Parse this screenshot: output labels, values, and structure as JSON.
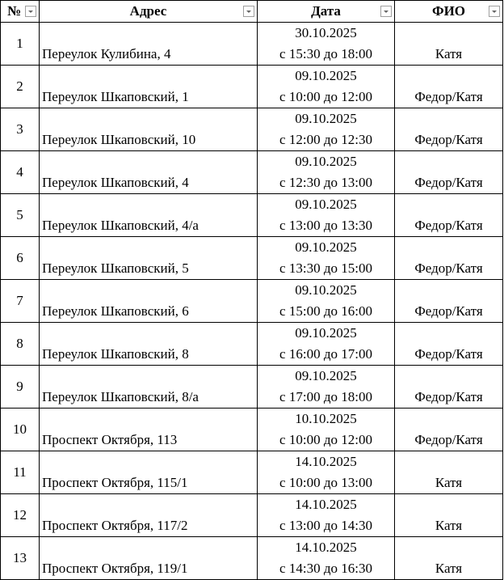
{
  "headers": [
    "№",
    "Адрес",
    "Дата",
    "ФИО"
  ],
  "rows": [
    {
      "n": "1",
      "address": "Переулок Кулибина, 4",
      "date": "30.10.2025",
      "time": "с 15:30 до 18:00",
      "fio": "Катя"
    },
    {
      "n": "2",
      "address": "Переулок Шкаповский, 1",
      "date": "09.10.2025",
      "time": "с 10:00 до 12:00",
      "fio": "Федор/Катя"
    },
    {
      "n": "3",
      "address": "Переулок Шкаповский, 10",
      "date": "09.10.2025",
      "time": "с 12:00 до 12:30",
      "fio": "Федор/Катя"
    },
    {
      "n": "4",
      "address": "Переулок Шкаповский, 4",
      "date": "09.10.2025",
      "time": "с 12:30 до 13:00",
      "fio": "Федор/Катя"
    },
    {
      "n": "5",
      "address": "Переулок Шкаповский, 4/а",
      "date": "09.10.2025",
      "time": "с 13:00 до 13:30",
      "fio": "Федор/Катя"
    },
    {
      "n": "6",
      "address": "Переулок Шкаповский, 5",
      "date": "09.10.2025",
      "time": "с 13:30 до 15:00",
      "fio": "Федор/Катя"
    },
    {
      "n": "7",
      "address": "Переулок Шкаповский, 6",
      "date": "09.10.2025",
      "time": "с 15:00 до 16:00",
      "fio": "Федор/Катя"
    },
    {
      "n": "8",
      "address": "Переулок Шкаповский, 8",
      "date": "09.10.2025",
      "time": "с 16:00 до 17:00",
      "fio": "Федор/Катя"
    },
    {
      "n": "9",
      "address": "Переулок Шкаповский, 8/а",
      "date": "09.10.2025",
      "time": "с 17:00 до 18:00",
      "fio": "Федор/Катя"
    },
    {
      "n": "10",
      "address": "Проспект Октября, 113",
      "date": "10.10.2025",
      "time": "с 10:00 до 12:00",
      "fio": "Федор/Катя"
    },
    {
      "n": "11",
      "address": "Проспект Октября, 115/1",
      "date": "14.10.2025",
      "time": "с 10:00 до 13:00",
      "fio": "Катя"
    },
    {
      "n": "12",
      "address": "Проспект Октября, 117/2",
      "date": "14.10.2025",
      "time": "с 13:00 до 14:30",
      "fio": "Катя"
    },
    {
      "n": "13",
      "address": "Проспект Октября, 119/1",
      "date": "14.10.2025",
      "time": "с 14:30 до 16:30",
      "fio": "Катя"
    }
  ]
}
